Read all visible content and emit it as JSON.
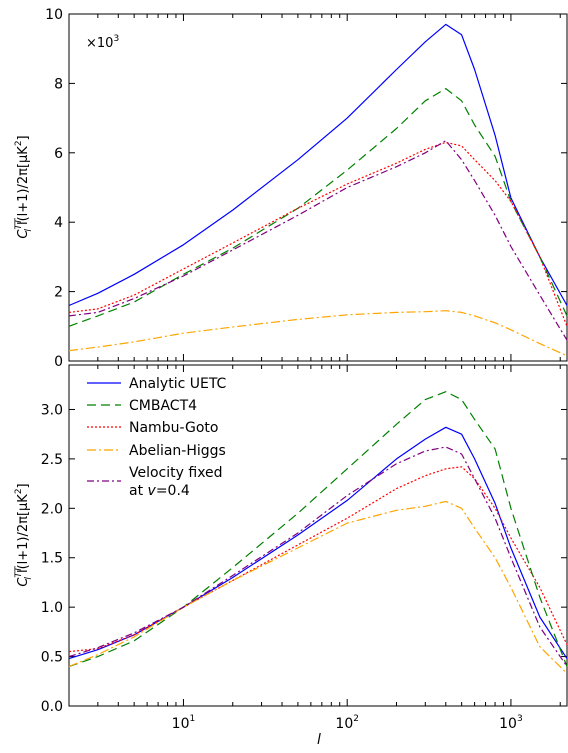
{
  "chart_data": [
    {
      "type": "line",
      "xlabel": "",
      "ylabel_main": "C",
      "ylabel_sup": "TT",
      "ylabel_sub": "l",
      "ylabel_rest": "l(l+1)/2π[μK",
      "ylabel_sup2": "2",
      "ylabel_end": "]",
      "xscale": "log",
      "xlim": [
        2,
        2200
      ],
      "ylim": [
        0,
        10
      ],
      "yticks": [
        "0",
        "2",
        "4",
        "6",
        "8",
        "10"
      ],
      "ytick_values": [
        0,
        2,
        4,
        6,
        8,
        10
      ],
      "multiplier_base": "×10",
      "multiplier_exp": "3",
      "legend": "none",
      "series": [
        {
          "name": "Analytic UETC",
          "color": "#0000ff",
          "dash": "solid",
          "x": [
            2,
            3,
            5,
            10,
            20,
            50,
            100,
            200,
            300,
            400,
            500,
            600,
            800,
            1000,
            1500,
            2200
          ],
          "y": [
            1.6,
            1.95,
            2.5,
            3.35,
            4.35,
            5.8,
            7.0,
            8.4,
            9.2,
            9.7,
            9.4,
            8.4,
            6.5,
            4.7,
            3.0,
            1.6
          ]
        },
        {
          "name": "CMBACT4",
          "color": "#008000",
          "dash": "9,5",
          "x": [
            2,
            3,
            5,
            10,
            20,
            50,
            100,
            200,
            300,
            400,
            500,
            600,
            800,
            1000,
            1500,
            2200
          ],
          "y": [
            1.0,
            1.3,
            1.7,
            2.5,
            3.25,
            4.4,
            5.5,
            6.7,
            7.5,
            7.85,
            7.5,
            6.8,
            5.9,
            4.6,
            3.0,
            1.3
          ]
        },
        {
          "name": "Nambu-Goto",
          "color": "#ff0000",
          "dash": "2,2",
          "x": [
            2,
            3,
            5,
            10,
            20,
            50,
            100,
            200,
            300,
            400,
            500,
            600,
            800,
            1000,
            1500,
            2200
          ],
          "y": [
            1.4,
            1.5,
            1.9,
            2.65,
            3.4,
            4.4,
            5.1,
            5.7,
            6.1,
            6.3,
            6.2,
            5.8,
            5.2,
            4.6,
            3.0,
            1.0
          ]
        },
        {
          "name": "Abelian-Higgs",
          "color": "#ffa500",
          "dash": "9,3,2,3",
          "x": [
            2,
            3,
            5,
            10,
            20,
            50,
            100,
            200,
            300,
            400,
            500,
            600,
            800,
            1000,
            1500,
            2200
          ],
          "y": [
            0.3,
            0.4,
            0.55,
            0.8,
            0.98,
            1.2,
            1.33,
            1.4,
            1.42,
            1.45,
            1.4,
            1.3,
            1.1,
            0.9,
            0.5,
            0.15
          ]
        },
        {
          "name": "Velocity fixed at v=0.4",
          "color": "#800080",
          "dash": "7,3,2,3",
          "x": [
            2,
            3,
            5,
            10,
            20,
            50,
            100,
            200,
            300,
            400,
            500,
            600,
            800,
            1000,
            1500,
            2200
          ],
          "y": [
            1.3,
            1.4,
            1.8,
            2.45,
            3.2,
            4.2,
            5.0,
            5.6,
            6.0,
            6.35,
            5.8,
            5.2,
            4.2,
            3.3,
            1.9,
            0.6
          ]
        }
      ]
    },
    {
      "type": "line",
      "xlabel": "l",
      "ylabel_main": "C",
      "ylabel_sup": "TT",
      "ylabel_sub": "l",
      "ylabel_rest": "l(l+1)/2π[μK",
      "ylabel_sup2": "2",
      "ylabel_end": "]",
      "xscale": "log",
      "xlim": [
        2,
        2200
      ],
      "ylim": [
        0,
        3.45
      ],
      "yticks": [
        "0.0",
        "0.5",
        "1.0",
        "1.5",
        "2.0",
        "2.5",
        "3.0"
      ],
      "ytick_values": [
        0,
        0.5,
        1.0,
        1.5,
        2.0,
        2.5,
        3.0
      ],
      "xticks": [
        {
          "base": "10",
          "exp": "1",
          "value": 10
        },
        {
          "base": "10",
          "exp": "2",
          "value": 100
        },
        {
          "base": "10",
          "exp": "3",
          "value": 1000
        }
      ],
      "legend": "top-left",
      "legend_entries": [
        {
          "label": "Analytic UETC",
          "color": "#0000ff",
          "dash": "solid"
        },
        {
          "label": "CMBACT4",
          "color": "#008000",
          "dash": "9,5"
        },
        {
          "label": "Nambu-Goto",
          "color": "#ff0000",
          "dash": "2,2"
        },
        {
          "label": "Abelian-Higgs",
          "color": "#ffa500",
          "dash": "9,3,2,3"
        },
        {
          "label": "Velocity fixed",
          "label2_prefix": "at ",
          "label2_var": "v",
          "label2_suffix": "=0.4",
          "color": "#800080",
          "dash": "7,3,2,3"
        }
      ],
      "series": [
        {
          "name": "Analytic UETC",
          "color": "#0000ff",
          "dash": "solid",
          "x": [
            2,
            3,
            5,
            10,
            20,
            50,
            100,
            200,
            300,
            400,
            500,
            600,
            800,
            1000,
            1500,
            2200
          ],
          "y": [
            0.48,
            0.57,
            0.72,
            1.0,
            1.3,
            1.73,
            2.08,
            2.5,
            2.7,
            2.82,
            2.75,
            2.5,
            2.05,
            1.6,
            0.9,
            0.48
          ]
        },
        {
          "name": "CMBACT4",
          "color": "#008000",
          "dash": "9,5",
          "x": [
            2,
            3,
            5,
            10,
            20,
            50,
            100,
            200,
            300,
            400,
            500,
            600,
            800,
            1000,
            1500,
            2200
          ],
          "y": [
            0.4,
            0.5,
            0.66,
            1.0,
            1.4,
            1.95,
            2.4,
            2.85,
            3.1,
            3.18,
            3.1,
            2.9,
            2.6,
            2.0,
            1.1,
            0.4
          ]
        },
        {
          "name": "Nambu-Goto",
          "color": "#ff0000",
          "dash": "2,2",
          "x": [
            2,
            3,
            5,
            10,
            20,
            50,
            100,
            200,
            300,
            400,
            500,
            600,
            800,
            1000,
            1500,
            2200
          ],
          "y": [
            0.55,
            0.58,
            0.72,
            1.0,
            1.27,
            1.63,
            1.9,
            2.2,
            2.33,
            2.4,
            2.42,
            2.3,
            2.0,
            1.7,
            1.2,
            0.62
          ]
        },
        {
          "name": "Abelian-Higgs",
          "color": "#ffa500",
          "dash": "9,3,2,3",
          "x": [
            2,
            3,
            5,
            10,
            20,
            50,
            100,
            200,
            300,
            400,
            500,
            600,
            800,
            1000,
            1500,
            2200
          ],
          "y": [
            0.4,
            0.52,
            0.7,
            1.0,
            1.27,
            1.6,
            1.85,
            1.98,
            2.02,
            2.07,
            2.0,
            1.8,
            1.5,
            1.2,
            0.6,
            0.33
          ]
        },
        {
          "name": "Velocity fixed at v=0.4",
          "color": "#800080",
          "dash": "7,3,2,3",
          "x": [
            2,
            3,
            5,
            10,
            20,
            50,
            100,
            200,
            300,
            400,
            500,
            600,
            800,
            1000,
            1500,
            2200
          ],
          "y": [
            0.5,
            0.59,
            0.74,
            1.0,
            1.32,
            1.75,
            2.13,
            2.45,
            2.58,
            2.62,
            2.55,
            2.3,
            1.9,
            1.5,
            0.8,
            0.4
          ]
        }
      ]
    }
  ]
}
